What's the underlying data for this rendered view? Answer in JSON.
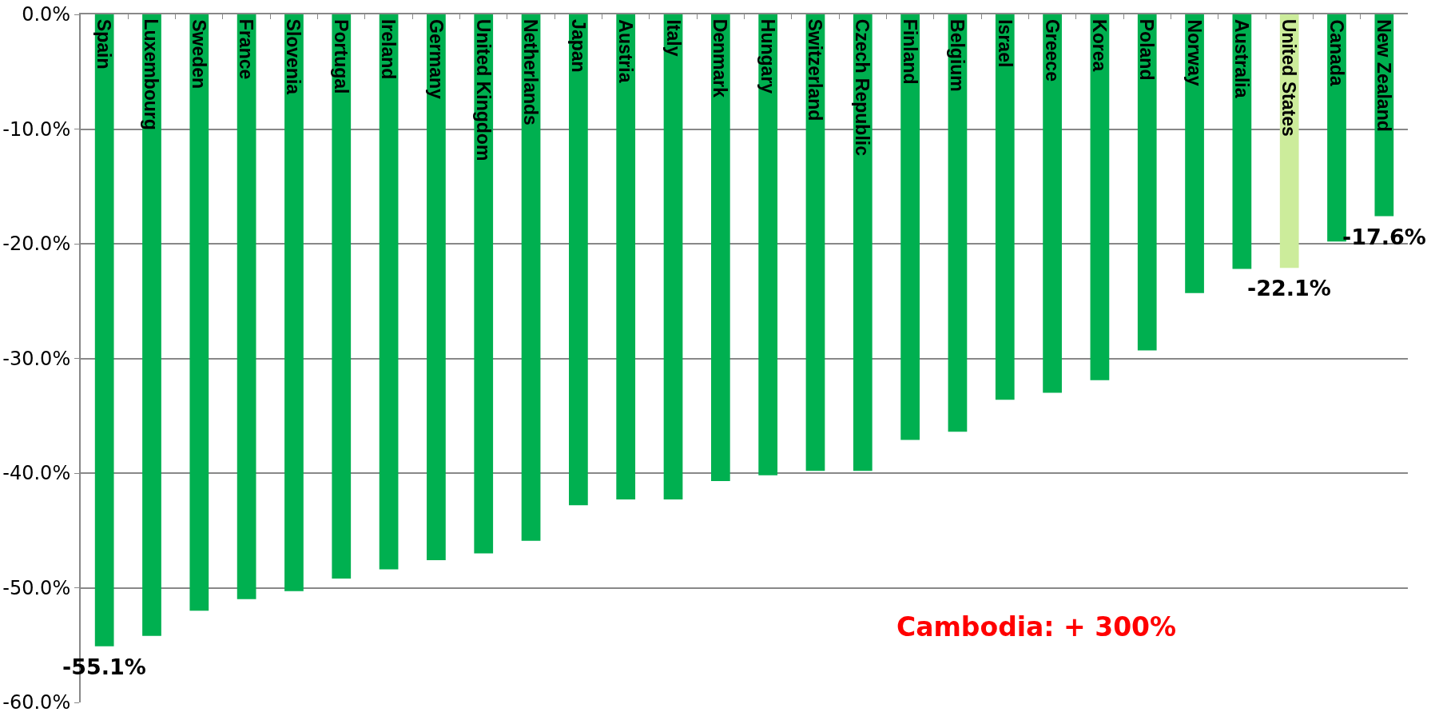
{
  "chart_data": {
    "type": "bar",
    "categories": [
      "Spain",
      "Luxembourg",
      "Sweden",
      "France",
      "Slovenia",
      "Portugal",
      "Ireland",
      "Germany",
      "United Kingdom",
      "Netherlands",
      "Japan",
      "Austria",
      "Italy",
      "Denmark",
      "Hungary",
      "Switzerland",
      "Czech Republic",
      "Finland",
      "Belgium",
      "Israel",
      "Greece",
      "Korea",
      "Poland",
      "Norway",
      "Australia",
      "United States",
      "Canada",
      "New Zealand"
    ],
    "values": [
      -55.1,
      -54.2,
      -52.0,
      -51.0,
      -50.3,
      -49.2,
      -48.4,
      -47.6,
      -47.0,
      -45.9,
      -42.8,
      -42.3,
      -42.3,
      -40.7,
      -40.2,
      -39.8,
      -39.8,
      -37.1,
      -36.4,
      -33.6,
      -33.0,
      -31.9,
      -29.3,
      -24.3,
      -22.2,
      -22.1,
      -19.8,
      -17.6
    ],
    "colors": [
      "#00b050",
      "#00b050",
      "#00b050",
      "#00b050",
      "#00b050",
      "#00b050",
      "#00b050",
      "#00b050",
      "#00b050",
      "#00b050",
      "#00b050",
      "#00b050",
      "#00b050",
      "#00b050",
      "#00b050",
      "#00b050",
      "#00b050",
      "#00b050",
      "#00b050",
      "#00b050",
      "#00b050",
      "#00b050",
      "#00b050",
      "#00b050",
      "#00b050",
      "#ccec9b",
      "#00b050",
      "#00b050"
    ],
    "value_labels": [
      "-55.1%",
      null,
      null,
      null,
      null,
      null,
      null,
      null,
      null,
      null,
      null,
      null,
      null,
      null,
      null,
      null,
      null,
      null,
      null,
      null,
      null,
      null,
      null,
      null,
      null,
      "-22.1%",
      null,
      "-17.6%"
    ],
    "ylim": [
      -60,
      0
    ],
    "yticks": [
      {
        "value": 0,
        "label": "0.0%"
      },
      {
        "value": -10,
        "label": "-10.0%"
      },
      {
        "value": -20,
        "label": "-20.0%"
      },
      {
        "value": -30,
        "label": "-30.0%"
      },
      {
        "value": -40,
        "label": "-40.0%"
      },
      {
        "value": -50,
        "label": "-50.0%"
      },
      {
        "value": -60,
        "label": "-60.0%"
      }
    ],
    "grid": "y",
    "annotations": [
      "Cambodia: + 300%"
    ]
  }
}
